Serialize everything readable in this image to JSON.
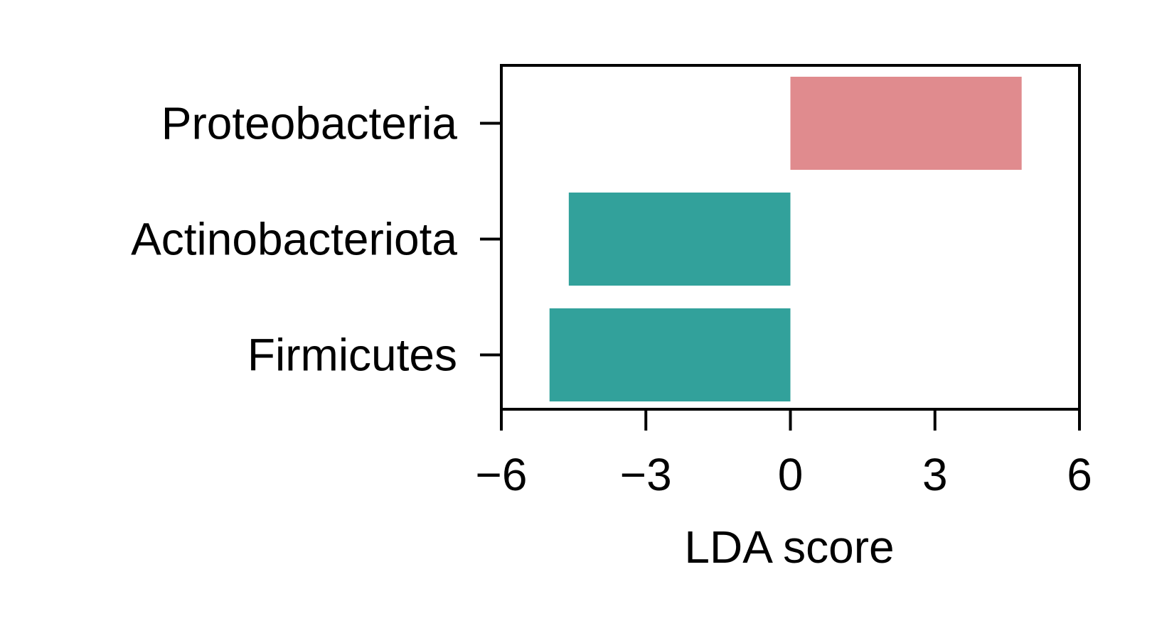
{
  "chart_data": {
    "type": "bar",
    "orientation": "horizontal",
    "categories": [
      "Proteobacteria",
      "Actinobacteriota",
      "Firmicutes"
    ],
    "values": [
      4.8,
      -4.6,
      -5.0
    ],
    "colors": [
      "#e08b8e",
      "#ea8a8c",
      "#ea8a8c"
    ],
    "bar_colors": [
      "#e08b8e",
      "#32a19b",
      "#32a19b"
    ],
    "xlabel": "LDA score",
    "ylabel": "",
    "title": "",
    "xlim": [
      -6,
      6
    ],
    "xticks": [
      -6,
      -3,
      0,
      3,
      6
    ],
    "xtick_labels": [
      "−6",
      "−3",
      "0",
      "3",
      "6"
    ],
    "grid": false,
    "legend": "none"
  }
}
